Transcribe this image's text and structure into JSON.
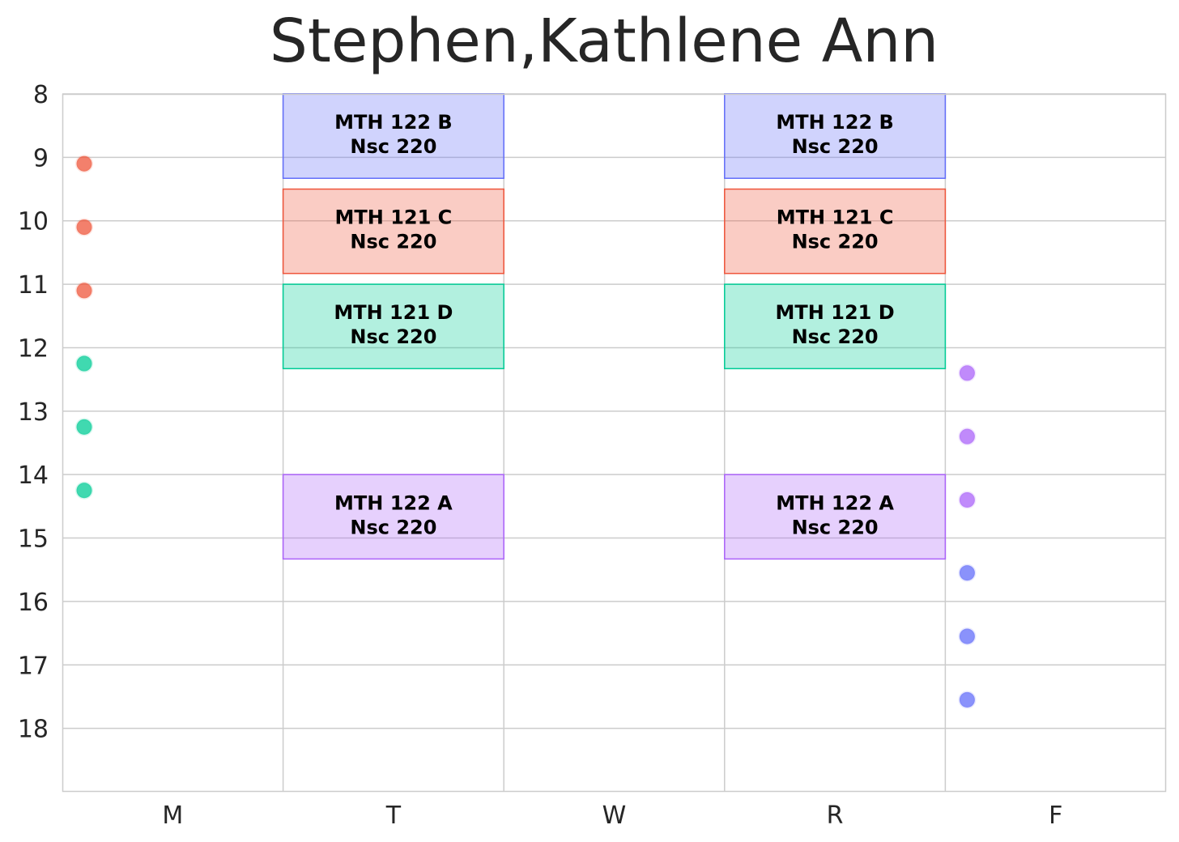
{
  "chart_data": {
    "type": "bar",
    "title": "Stephen,Kathlene Ann",
    "xlabel": "",
    "ylabel": "",
    "categories": [
      "M",
      "T",
      "W",
      "R",
      "F"
    ],
    "yticks": [
      "8",
      "9",
      "10",
      "11",
      "12",
      "13",
      "14",
      "15",
      "16",
      "17",
      "18"
    ],
    "ylim": [
      19,
      8
    ],
    "y_inverted": true,
    "grid": true,
    "blocks": [
      {
        "day": "T",
        "course": "MTH 122 B",
        "room": "Nsc 220",
        "start": 8.0,
        "end": 9.33,
        "color": "#636efa"
      },
      {
        "day": "T",
        "course": "MTH 121 C",
        "room": "Nsc 220",
        "start": 9.5,
        "end": 10.83,
        "color": "#ef553b"
      },
      {
        "day": "T",
        "course": "MTH 121 D",
        "room": "Nsc 220",
        "start": 11.0,
        "end": 12.33,
        "color": "#00cc96"
      },
      {
        "day": "T",
        "course": "MTH 122 A",
        "room": "Nsc 220",
        "start": 14.0,
        "end": 15.33,
        "color": "#ab63fa"
      },
      {
        "day": "R",
        "course": "MTH 122 B",
        "room": "Nsc 220",
        "start": 8.0,
        "end": 9.33,
        "color": "#636efa"
      },
      {
        "day": "R",
        "course": "MTH 121 C",
        "room": "Nsc 220",
        "start": 9.5,
        "end": 10.83,
        "color": "#ef553b"
      },
      {
        "day": "R",
        "course": "MTH 121 D",
        "room": "Nsc 220",
        "start": 11.0,
        "end": 12.33,
        "color": "#00cc96"
      },
      {
        "day": "R",
        "course": "MTH 122 A",
        "room": "Nsc 220",
        "start": 14.0,
        "end": 15.33,
        "color": "#ab63fa"
      }
    ],
    "points": [
      {
        "day": "M",
        "y": 9.1,
        "color": "#ef553b"
      },
      {
        "day": "M",
        "y": 10.1,
        "color": "#ef553b"
      },
      {
        "day": "M",
        "y": 11.1,
        "color": "#ef553b"
      },
      {
        "day": "M",
        "y": 12.25,
        "color": "#00cc96"
      },
      {
        "day": "M",
        "y": 13.25,
        "color": "#00cc96"
      },
      {
        "day": "M",
        "y": 14.25,
        "color": "#00cc96"
      },
      {
        "day": "F",
        "y": 12.4,
        "color": "#ab63fa"
      },
      {
        "day": "F",
        "y": 13.4,
        "color": "#ab63fa"
      },
      {
        "day": "F",
        "y": 14.4,
        "color": "#ab63fa"
      },
      {
        "day": "F",
        "y": 15.55,
        "color": "#636efa"
      },
      {
        "day": "F",
        "y": 16.55,
        "color": "#636efa"
      },
      {
        "day": "F",
        "y": 17.55,
        "color": "#636efa"
      }
    ]
  }
}
